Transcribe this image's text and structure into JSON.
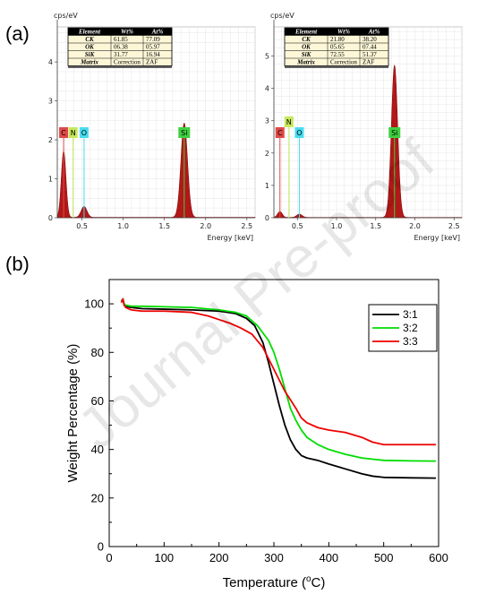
{
  "chart_data": [
    {
      "type": "area",
      "panel": "(a)",
      "ylabel": "cps/eV",
      "xlabel": "Energy [keV]",
      "xlim": [
        0.2,
        2.6
      ],
      "ylim": [
        0,
        4.9
      ],
      "xticks": [
        "0.5",
        "1.0",
        "1.5",
        "2.0",
        "2.5"
      ],
      "yticks": [
        "0",
        "1",
        "2",
        "3",
        "4"
      ],
      "grid": true,
      "table": {
        "header": [
          "Element",
          "Wt%",
          "At%"
        ],
        "rows": [
          [
            "CK",
            "61.85",
            "77.09"
          ],
          [
            "OK",
            "06.38",
            "05.97"
          ],
          [
            "SiK",
            "31.77",
            "16.94"
          ],
          [
            "Matrix",
            "Correction",
            "ZAF"
          ]
        ]
      },
      "element_labels": [
        {
          "text": "C",
          "energy": 0.277,
          "color": "#e04848"
        },
        {
          "text": "N",
          "energy": 0.392,
          "color": "#c6e85a"
        },
        {
          "text": "O",
          "energy": 0.525,
          "color": "#48dcf0"
        },
        {
          "text": "Si",
          "energy": 1.74,
          "color": "#3fcf3f"
        }
      ],
      "peaks": [
        {
          "energy": 0.277,
          "height": 1.7,
          "width": 0.028
        },
        {
          "energy": 0.525,
          "height": 0.28,
          "width": 0.035
        },
        {
          "energy": 1.74,
          "height": 2.42,
          "width": 0.04
        }
      ]
    },
    {
      "type": "area",
      "ylabel": "cps/eV",
      "xlabel": "Energy [keV]",
      "xlim": [
        0.2,
        2.6
      ],
      "ylim": [
        0,
        5.9
      ],
      "xticks": [
        "0.5",
        "1.0",
        "1.5",
        "2.0",
        "2.5"
      ],
      "yticks": [
        "0",
        "1",
        "2",
        "3",
        "4",
        "5"
      ],
      "grid": true,
      "table": {
        "header": [
          "Element",
          "Wt%",
          "At%"
        ],
        "rows": [
          [
            "CK",
            "21.80",
            "38.20"
          ],
          [
            "OK",
            "05.65",
            "07.44"
          ],
          [
            "SiK",
            "72.55",
            "51.37"
          ],
          [
            "Matrix",
            "Correction",
            "ZAF"
          ]
        ]
      },
      "element_labels": [
        {
          "text": "C",
          "energy": 0.277,
          "color": "#e04848",
          "row": 1
        },
        {
          "text": "N",
          "energy": 0.392,
          "color": "#c6e85a",
          "row": 0
        },
        {
          "text": "O",
          "energy": 0.525,
          "color": "#48dcf0",
          "row": 1
        },
        {
          "text": "Si",
          "energy": 1.74,
          "color": "#3fcf3f",
          "row": 1
        }
      ],
      "peaks": [
        {
          "energy": 0.277,
          "height": 0.18,
          "width": 0.03
        },
        {
          "energy": 0.525,
          "height": 0.1,
          "width": 0.035
        },
        {
          "energy": 1.74,
          "height": 4.7,
          "width": 0.04
        }
      ]
    },
    {
      "type": "line",
      "panel": "(b)",
      "xlabel": "Temperature (°C)",
      "ylabel": "Weight Percentage (%)",
      "xlim": [
        0,
        600
      ],
      "ylim": [
        0,
        110
      ],
      "xticks": [
        0,
        100,
        200,
        300,
        400,
        500,
        600
      ],
      "yticks": [
        0,
        20,
        40,
        60,
        80,
        100
      ],
      "legend_position": "top-right",
      "series": [
        {
          "name": "3:1",
          "color": "#000000",
          "x": [
            22,
            25,
            27,
            30,
            40,
            60,
            100,
            150,
            200,
            230,
            250,
            265,
            280,
            290,
            300,
            310,
            320,
            330,
            340,
            350,
            360,
            380,
            400,
            430,
            460,
            480,
            500,
            550,
            595
          ],
          "y": [
            101,
            102,
            100,
            99,
            98.5,
            98,
            97.8,
            97.5,
            97,
            96,
            94,
            91,
            84,
            76,
            67,
            58,
            50,
            44,
            40,
            37.5,
            36.5,
            35.5,
            34,
            32,
            30,
            29,
            28.5,
            28.3,
            28.2
          ]
        },
        {
          "name": "3:2",
          "color": "#00dd00",
          "x": [
            22,
            25,
            27,
            30,
            40,
            60,
            100,
            150,
            200,
            230,
            250,
            270,
            290,
            300,
            310,
            320,
            330,
            340,
            350,
            360,
            370,
            380,
            400,
            430,
            460,
            480,
            500,
            550,
            595
          ],
          "y": [
            101,
            102,
            100,
            99.5,
            99,
            99,
            98.8,
            98.5,
            97.5,
            96.5,
            95,
            91,
            85,
            80,
            73,
            65,
            57,
            52,
            48,
            45,
            43.5,
            42,
            40,
            38,
            36.5,
            36,
            35.5,
            35.3,
            35.2
          ]
        },
        {
          "name": "3:3",
          "color": "#ee0000",
          "x": [
            22,
            25,
            27,
            30,
            40,
            60,
            100,
            150,
            180,
            200,
            220,
            240,
            260,
            280,
            300,
            320,
            340,
            350,
            360,
            380,
            400,
            430,
            460,
            480,
            500,
            550,
            595
          ],
          "y": [
            100.5,
            102,
            99.5,
            98.5,
            97.5,
            97,
            97,
            96.5,
            95,
            93.5,
            92,
            90,
            87.5,
            82,
            73,
            64,
            57,
            53,
            51,
            49,
            48,
            47,
            45,
            43,
            42,
            42,
            42
          ]
        }
      ]
    }
  ],
  "labels": {
    "panel_a": "(a)",
    "panel_b": "(b)",
    "watermark": "Journal Pre-proof",
    "eds_unit": "cps/eV",
    "eds_xlabel": "Energy [keV]",
    "tga_ylabel": "Weight Percentage (%)",
    "tga_xlabel_main": "Temperature (",
    "tga_xlabel_sup": "o",
    "tga_xlabel_end": "C)"
  }
}
